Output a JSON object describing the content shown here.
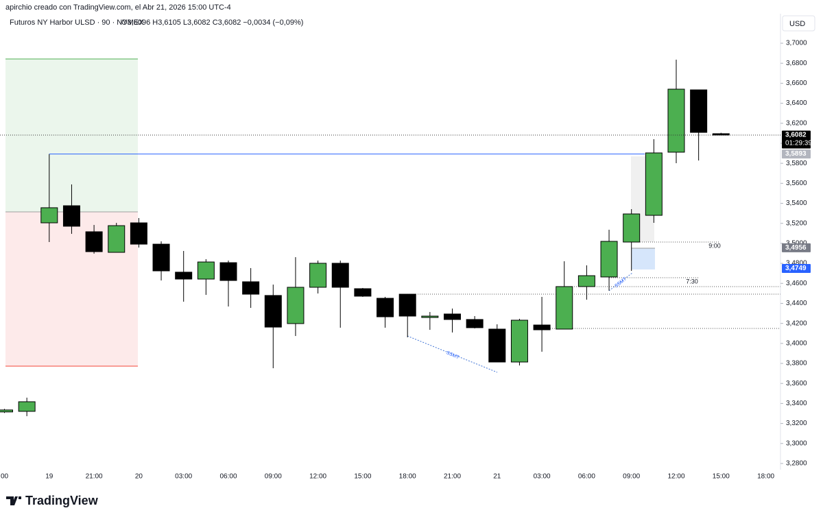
{
  "chart_data": {
    "type": "candlestick",
    "title": "Futuros NY Harbor ULSD · 90 · NYMEX",
    "ohlc_text": "O3,6096 H3,6105 L3,6082 C3,6082 −0,0034 (−0,09%)",
    "subtitle": "apirchio creado con TradingView.com, el Abr 21, 2026 15:00 UTC-4",
    "currency": "USD",
    "brand": "TradingView",
    "categories": [
      "00",
      null,
      "19",
      null,
      "21:00",
      null,
      "20",
      null,
      "03:00",
      null,
      "06:00",
      null,
      "09:00",
      null,
      "12:00",
      null,
      "15:00",
      null,
      "18:00",
      null,
      "21:00",
      null,
      "21",
      null,
      "03:00",
      null,
      "06:00",
      null,
      "09:00",
      null,
      "12:00",
      null,
      "15:00",
      null,
      "18:00"
    ],
    "open": [
      3.3315,
      3.3321,
      3.5205,
      3.5376,
      3.5116,
      3.491,
      3.5205,
      3.4992,
      3.4712,
      3.4643,
      3.4807,
      3.4616,
      3.4479,
      3.4198,
      3.4561,
      3.4801,
      3.4547,
      3.4451,
      3.4492,
      3.4259,
      3.4294,
      3.4239,
      3.4143,
      3.3814,
      3.4184,
      3.4143,
      3.4568,
      3.4664,
      3.5013,
      3.528,
      3.5911,
      3.6534,
      3.6096,
      null,
      null
    ],
    "high": [
      3.3345,
      3.3458,
      3.5893,
      3.5589,
      3.5184,
      3.5205,
      3.5253,
      3.502,
      3.4924,
      3.4842,
      3.4828,
      3.4753,
      3.4588,
      3.4862,
      3.4828,
      3.4828,
      3.4554,
      3.4465,
      3.4492,
      3.4314,
      3.4348,
      3.4273,
      3.4191,
      3.4246,
      3.4465,
      3.4821,
      3.478,
      3.5136,
      3.5342,
      3.6041,
      3.6836,
      3.6534,
      3.6105,
      null,
      null
    ],
    "low": [
      3.3305,
      3.3273,
      3.5013,
      3.5095,
      3.4897,
      3.491,
      3.4958,
      3.4629,
      3.4417,
      3.4485,
      3.4369,
      3.4355,
      3.3752,
      3.4074,
      3.4499,
      3.4157,
      3.4465,
      3.4157,
      3.4061,
      3.4136,
      3.4109,
      3.415,
      3.3814,
      3.378,
      3.3917,
      3.4143,
      3.4437,
      3.4527,
      3.4725,
      3.5205,
      3.5801,
      3.5828,
      3.6082,
      null,
      null
    ],
    "close": [
      3.3335,
      3.3417,
      3.5356,
      3.5171,
      3.4917,
      3.5177,
      3.4992,
      3.4725,
      3.4643,
      3.4814,
      3.4629,
      3.4492,
      3.4163,
      3.4561,
      3.4801,
      3.4561,
      3.4472,
      3.4266,
      3.4273,
      3.4273,
      3.4239,
      3.4157,
      3.3814,
      3.4232,
      3.4136,
      3.4568,
      3.4677,
      3.502,
      3.5294,
      3.5904,
      3.6541,
      3.6109,
      3.6082,
      null,
      null
    ],
    "up_color": "#4caf50",
    "down_color": "#000000",
    "ylim": [
      3.2738,
      3.7295
    ],
    "yticks": [
      {
        "value": 3.7,
        "label": "3,7000"
      },
      {
        "value": 3.68,
        "label": "3,6800"
      },
      {
        "value": 3.66,
        "label": "3,6600"
      },
      {
        "value": 3.64,
        "label": "3,6400"
      },
      {
        "value": 3.62,
        "label": "3,6200"
      },
      {
        "value": 3.6,
        "label": "3,6000"
      },
      {
        "value": 3.58,
        "label": "3,5800"
      },
      {
        "value": 3.56,
        "label": "3,5600"
      },
      {
        "value": 3.54,
        "label": "3,5400"
      },
      {
        "value": 3.52,
        "label": "3,5200"
      },
      {
        "value": 3.5,
        "label": "3,5000"
      },
      {
        "value": 3.48,
        "label": "3,4800"
      },
      {
        "value": 3.46,
        "label": "3,4600"
      },
      {
        "value": 3.44,
        "label": "3,4400"
      },
      {
        "value": 3.42,
        "label": "3,4200"
      },
      {
        "value": 3.4,
        "label": "3,4000"
      },
      {
        "value": 3.38,
        "label": "3,3800"
      },
      {
        "value": 3.36,
        "label": "3,3600"
      },
      {
        "value": 3.34,
        "label": "3,3400"
      },
      {
        "value": 3.32,
        "label": "3,3200"
      },
      {
        "value": 3.3,
        "label": "3,3000"
      },
      {
        "value": 3.28,
        "label": "3,2800"
      }
    ],
    "price_tags": [
      {
        "value": 3.6082,
        "label": "3,6082",
        "countdown": "01:29:39",
        "color": "#000000"
      },
      {
        "value": 3.5893,
        "label": "3,5893",
        "color": "#b2b5be"
      },
      {
        "value": 3.4956,
        "label": "3,4956",
        "color": "#787b86"
      },
      {
        "value": 3.4749,
        "label": "3,4749",
        "color": "#2962ff"
      }
    ],
    "annotations": [
      "9:00",
      "7:30",
      "SSMT",
      "SSMT"
    ]
  }
}
